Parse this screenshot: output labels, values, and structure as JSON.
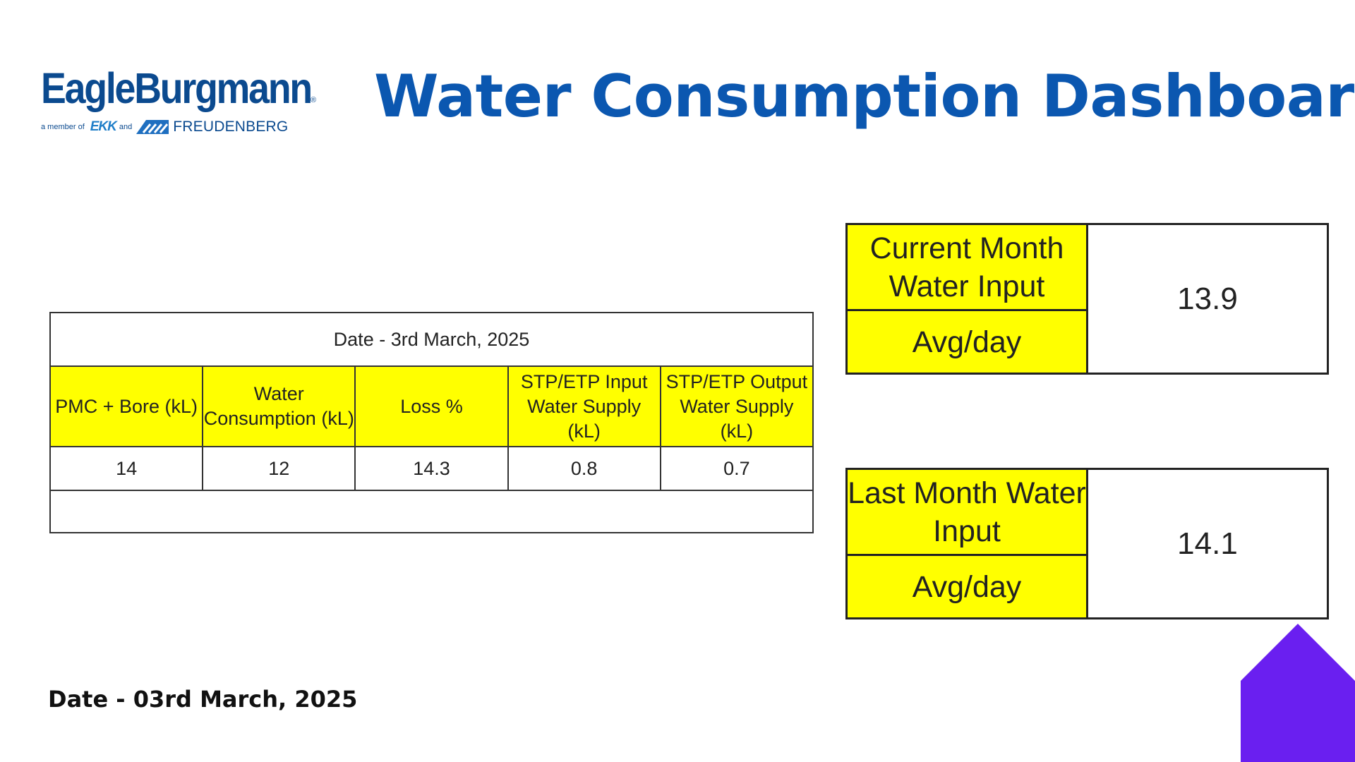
{
  "logo": {
    "name": "EagleBurgmann",
    "registered": "®",
    "member_of": "a member of",
    "ekk": "EKK",
    "and": "and",
    "freudenberg": "FREUDENBERG"
  },
  "title": "Water Consumption Dashboard",
  "main_table": {
    "date": "Date - 3rd March, 2025",
    "headers": [
      "PMC + Bore (kL)",
      "Water Consumption (kL)",
      "Loss %",
      "STP/ETP Input Water Supply (kL)",
      "STP/ETP Output Water Supply (kL)"
    ],
    "values": [
      "14",
      "12",
      "14.3",
      "0.8",
      "0.7"
    ]
  },
  "current_month": {
    "label": "Current Month Water Input",
    "sublabel": "Avg/day",
    "value": "13.9"
  },
  "last_month": {
    "label": "Last Month Water Input",
    "sublabel": "Avg/day",
    "value": "14.1"
  },
  "footer_date": "Date - 03rd March, 2025",
  "colors": {
    "title": "#0b57b0",
    "logo": "#0b4a8f",
    "highlight": "#ffff00",
    "corner_shape": "#6a1ff0"
  }
}
